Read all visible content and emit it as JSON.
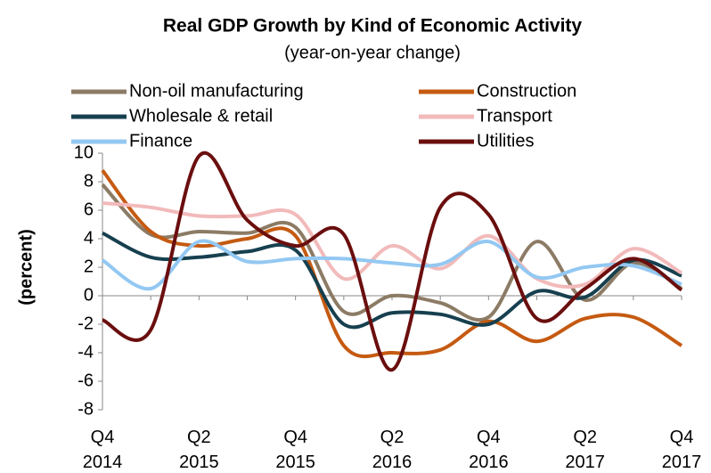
{
  "chart_data": {
    "type": "line",
    "title": "Real GDP Growth by Kind of Economic Activity",
    "subtitle": "(year-on-year change)",
    "y_label": "(percent)",
    "categories": [
      "Q4 2014",
      null,
      "Q2 2015",
      null,
      "Q4 2015",
      null,
      "Q2 2016",
      null,
      "Q4 2016",
      null,
      "Q2 2017",
      null,
      "Q4 2017"
    ],
    "series": [
      {
        "name": "Non-oil manufacturing",
        "color": "#8c7b65",
        "values": [
          7.8,
          4.3,
          4.5,
          4.4,
          4.8,
          -1.1,
          0,
          -0.5,
          -1.5,
          3.8,
          -0.3,
          2.3,
          0.5
        ]
      },
      {
        "name": "Construction",
        "color": "#c55a11",
        "values": [
          8.8,
          4.5,
          3.5,
          4,
          4.2,
          -3.5,
          -4,
          -3.8,
          -1.8,
          -3.2,
          -1.6,
          -1.5,
          -3.5
        ]
      },
      {
        "name": "Wholesale & retail",
        "color": "#17404f",
        "values": [
          4.4,
          2.7,
          2.7,
          3.1,
          3.2,
          -2,
          -1.2,
          -1.3,
          -2,
          0.3,
          -0.1,
          2.5,
          1.4
        ]
      },
      {
        "name": "Transport",
        "color": "#f2baba",
        "values": [
          6.5,
          6.2,
          5.6,
          5.6,
          5.7,
          1.2,
          3.5,
          1.9,
          4.2,
          1.2,
          0.8,
          3.3,
          1.6
        ]
      },
      {
        "name": "Finance",
        "color": "#93c8f2",
        "values": [
          2.5,
          0.5,
          3.8,
          2.4,
          2.6,
          2.6,
          2.3,
          2.2,
          3.8,
          1.3,
          2,
          2.1,
          0.8
        ]
      },
      {
        "name": "Utilities",
        "color": "#6b0e0e",
        "values": [
          -1.7,
          -2.4,
          9.8,
          5.3,
          3.5,
          4.3,
          -5.2,
          6.2,
          5.7,
          -1.6,
          0.5,
          2.6,
          0.4
        ]
      }
    ],
    "ylim": [
      -8,
      10
    ],
    "yticks": [
      -8,
      -6,
      -4,
      -2,
      0,
      2,
      4,
      6,
      8,
      10
    ],
    "grid": false
  }
}
